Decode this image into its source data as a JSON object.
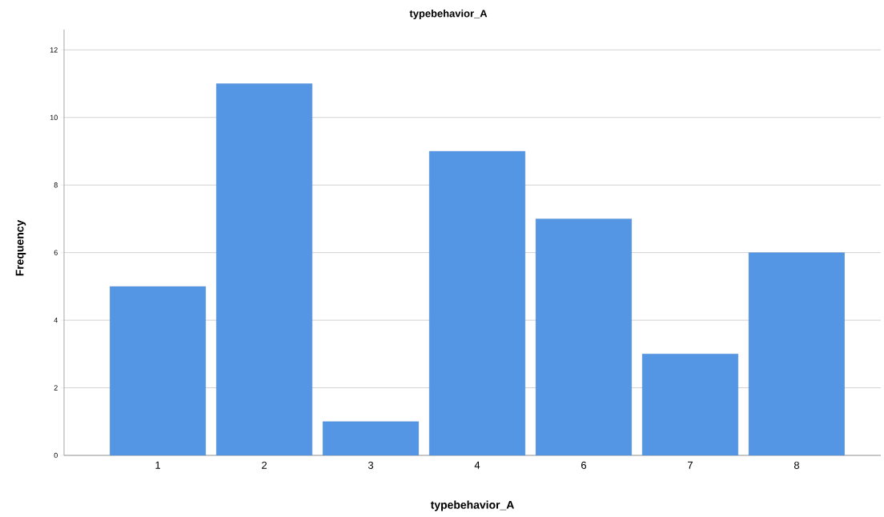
{
  "chart_data": {
    "type": "bar",
    "title": "typebehavior_A",
    "xlabel": "typebehavior_A",
    "ylabel": "Frequency",
    "categories": [
      "1",
      "2",
      "3",
      "4",
      "6",
      "7",
      "8"
    ],
    "values": [
      5,
      11,
      1,
      9,
      7,
      3,
      6
    ],
    "color": "#5596e4",
    "ylim": [
      0,
      12.6
    ],
    "yticks": [
      0,
      2,
      4,
      6,
      8,
      10,
      12
    ],
    "grid": "y"
  }
}
